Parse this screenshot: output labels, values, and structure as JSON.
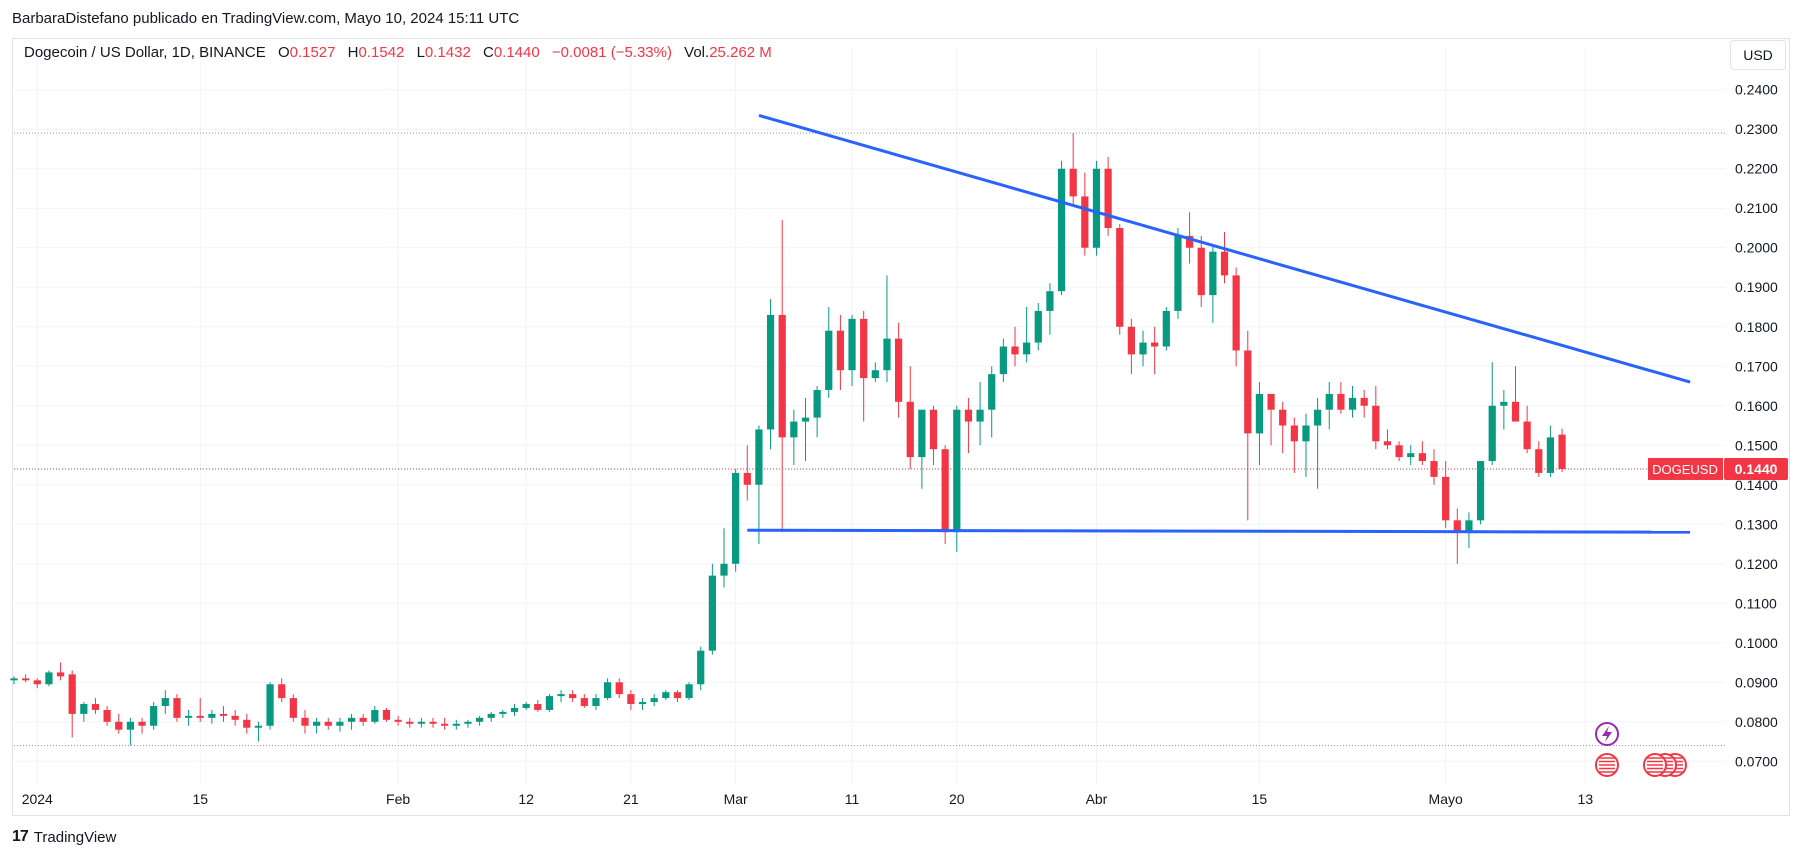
{
  "header": {
    "publisher": "BarbaraDistefano publicado en TradingView.com, Mayo 10, 2024 15:11 UTC"
  },
  "legend": {
    "symbol": "Dogecoin / US Dollar, 1D, BINANCE",
    "o_label": "O",
    "o": "0.1527",
    "h_label": "H",
    "h": "0.1542",
    "l_label": "L",
    "l": "0.1432",
    "c_label": "C",
    "c": "0.1440",
    "change": "−0.0081 (−5.33%)",
    "vol_label": "Vol",
    "vol": "25.262 M"
  },
  "currency_button": "USD",
  "footer": {
    "brand": "TradingView"
  },
  "colors": {
    "up": "#089981",
    "down": "#f23645",
    "trendline": "#2962ff",
    "grid": "#f0f3fa"
  },
  "chart_data": {
    "type": "candlestick",
    "symbol": "DOGEUSD",
    "last_price_label": "0.1440",
    "y_ticks": [
      "0.2400",
      "0.2300",
      "0.2200",
      "0.2100",
      "0.2000",
      "0.1900",
      "0.1800",
      "0.1700",
      "0.1600",
      "0.1500",
      "0.1400",
      "0.1300",
      "0.1200",
      "0.1100",
      "0.1000",
      "0.0900",
      "0.0800",
      "0.0700"
    ],
    "ylim": [
      0.064,
      0.2455
    ],
    "x_ticks": [
      {
        "label": "2024",
        "day": 1
      },
      {
        "label": "15",
        "day": 15
      },
      {
        "label": "Feb",
        "day": 32
      },
      {
        "label": "12",
        "day": 43
      },
      {
        "label": "21",
        "day": 52
      },
      {
        "label": "Mar",
        "day": 61
      },
      {
        "label": "11",
        "day": 71
      },
      {
        "label": "20",
        "day": 80
      },
      {
        "label": "Abr",
        "day": 92
      },
      {
        "label": "15",
        "day": 106
      },
      {
        "label": "Mayo",
        "day": 122
      },
      {
        "label": "13",
        "day": 134
      }
    ],
    "x_start_day": -1,
    "x_end_day": 146,
    "candles": [
      [
        0.0905,
        0.0915,
        0.0895,
        0.091
      ],
      [
        0.091,
        0.092,
        0.09,
        0.0905
      ],
      [
        0.0905,
        0.091,
        0.0885,
        0.0895
      ],
      [
        0.0895,
        0.093,
        0.089,
        0.0925
      ],
      [
        0.0925,
        0.095,
        0.0905,
        0.0915
      ],
      [
        0.092,
        0.093,
        0.076,
        0.082
      ],
      [
        0.082,
        0.085,
        0.08,
        0.0845
      ],
      [
        0.0845,
        0.086,
        0.082,
        0.083
      ],
      [
        0.083,
        0.084,
        0.079,
        0.08
      ],
      [
        0.08,
        0.082,
        0.077,
        0.078
      ],
      [
        0.078,
        0.081,
        0.074,
        0.08
      ],
      [
        0.08,
        0.081,
        0.077,
        0.079
      ],
      [
        0.079,
        0.085,
        0.078,
        0.084
      ],
      [
        0.084,
        0.088,
        0.082,
        0.086
      ],
      [
        0.086,
        0.087,
        0.08,
        0.081
      ],
      [
        0.081,
        0.083,
        0.079,
        0.0815
      ],
      [
        0.0815,
        0.086,
        0.08,
        0.081
      ],
      [
        0.081,
        0.083,
        0.0795,
        0.082
      ],
      [
        0.082,
        0.084,
        0.08,
        0.0815
      ],
      [
        0.0815,
        0.083,
        0.079,
        0.0805
      ],
      [
        0.0805,
        0.082,
        0.077,
        0.0785
      ],
      [
        0.0785,
        0.08,
        0.075,
        0.079
      ],
      [
        0.079,
        0.09,
        0.078,
        0.0895
      ],
      [
        0.0895,
        0.091,
        0.085,
        0.086
      ],
      [
        0.086,
        0.087,
        0.08,
        0.081
      ],
      [
        0.081,
        0.083,
        0.077,
        0.079
      ],
      [
        0.079,
        0.081,
        0.077,
        0.08
      ],
      [
        0.08,
        0.081,
        0.078,
        0.079
      ],
      [
        0.079,
        0.081,
        0.0775,
        0.08
      ],
      [
        0.08,
        0.082,
        0.078,
        0.081
      ],
      [
        0.081,
        0.082,
        0.079,
        0.08
      ],
      [
        0.08,
        0.084,
        0.0795,
        0.083
      ],
      [
        0.083,
        0.0835,
        0.08,
        0.0805
      ],
      [
        0.0805,
        0.0815,
        0.079,
        0.08
      ],
      [
        0.08,
        0.081,
        0.0785,
        0.0795
      ],
      [
        0.0795,
        0.081,
        0.0785,
        0.08
      ],
      [
        0.08,
        0.081,
        0.0785,
        0.0795
      ],
      [
        0.0795,
        0.081,
        0.078,
        0.079
      ],
      [
        0.079,
        0.0805,
        0.078,
        0.0795
      ],
      [
        0.0795,
        0.0805,
        0.0785,
        0.08
      ],
      [
        0.08,
        0.0815,
        0.079,
        0.081
      ],
      [
        0.081,
        0.0825,
        0.08,
        0.082
      ],
      [
        0.082,
        0.083,
        0.081,
        0.0825
      ],
      [
        0.0825,
        0.0845,
        0.0815,
        0.0835
      ],
      [
        0.0835,
        0.085,
        0.083,
        0.0845
      ],
      [
        0.0845,
        0.0855,
        0.0825,
        0.083
      ],
      [
        0.083,
        0.087,
        0.0825,
        0.0865
      ],
      [
        0.0865,
        0.088,
        0.085,
        0.087
      ],
      [
        0.087,
        0.088,
        0.085,
        0.086
      ],
      [
        0.086,
        0.087,
        0.0835,
        0.084
      ],
      [
        0.084,
        0.087,
        0.083,
        0.086
      ],
      [
        0.086,
        0.091,
        0.0855,
        0.09
      ],
      [
        0.09,
        0.091,
        0.086,
        0.087
      ],
      [
        0.087,
        0.088,
        0.083,
        0.0845
      ],
      [
        0.0845,
        0.086,
        0.083,
        0.085
      ],
      [
        0.085,
        0.087,
        0.084,
        0.086
      ],
      [
        0.086,
        0.088,
        0.0855,
        0.0875
      ],
      [
        0.0875,
        0.088,
        0.085,
        0.086
      ],
      [
        0.086,
        0.09,
        0.0855,
        0.0895
      ],
      [
        0.0895,
        0.099,
        0.088,
        0.098
      ],
      [
        0.098,
        0.12,
        0.097,
        0.117
      ],
      [
        0.117,
        0.129,
        0.114,
        0.12
      ],
      [
        0.12,
        0.144,
        0.118,
        0.143
      ],
      [
        0.143,
        0.15,
        0.136,
        0.14
      ],
      [
        0.14,
        0.155,
        0.125,
        0.154
      ],
      [
        0.154,
        0.187,
        0.149,
        0.183
      ],
      [
        0.183,
        0.207,
        0.128,
        0.152
      ],
      [
        0.152,
        0.159,
        0.145,
        0.156
      ],
      [
        0.156,
        0.162,
        0.146,
        0.157
      ],
      [
        0.157,
        0.165,
        0.152,
        0.164
      ],
      [
        0.164,
        0.185,
        0.162,
        0.179
      ],
      [
        0.179,
        0.183,
        0.164,
        0.169
      ],
      [
        0.169,
        0.183,
        0.165,
        0.182
      ],
      [
        0.182,
        0.184,
        0.156,
        0.167
      ],
      [
        0.167,
        0.171,
        0.166,
        0.169
      ],
      [
        0.169,
        0.193,
        0.166,
        0.177
      ],
      [
        0.177,
        0.181,
        0.157,
        0.161
      ],
      [
        0.161,
        0.17,
        0.144,
        0.147
      ],
      [
        0.147,
        0.158,
        0.139,
        0.159
      ],
      [
        0.159,
        0.16,
        0.145,
        0.149
      ],
      [
        0.149,
        0.15,
        0.125,
        0.128
      ],
      [
        0.128,
        0.16,
        0.123,
        0.159
      ],
      [
        0.159,
        0.162,
        0.148,
        0.156
      ],
      [
        0.156,
        0.166,
        0.15,
        0.159
      ],
      [
        0.159,
        0.17,
        0.152,
        0.168
      ],
      [
        0.168,
        0.177,
        0.166,
        0.175
      ],
      [
        0.175,
        0.18,
        0.17,
        0.173
      ],
      [
        0.173,
        0.185,
        0.171,
        0.176
      ],
      [
        0.176,
        0.186,
        0.174,
        0.184
      ],
      [
        0.184,
        0.191,
        0.178,
        0.189
      ],
      [
        0.189,
        0.222,
        0.188,
        0.22
      ],
      [
        0.22,
        0.229,
        0.211,
        0.213
      ],
      [
        0.213,
        0.219,
        0.198,
        0.2
      ],
      [
        0.2,
        0.222,
        0.198,
        0.22
      ],
      [
        0.22,
        0.223,
        0.203,
        0.205
      ],
      [
        0.205,
        0.206,
        0.178,
        0.18
      ],
      [
        0.18,
        0.182,
        0.168,
        0.173
      ],
      [
        0.173,
        0.179,
        0.17,
        0.176
      ],
      [
        0.176,
        0.18,
        0.168,
        0.175
      ],
      [
        0.175,
        0.185,
        0.174,
        0.184
      ],
      [
        0.184,
        0.205,
        0.182,
        0.203
      ],
      [
        0.203,
        0.209,
        0.196,
        0.2
      ],
      [
        0.2,
        0.203,
        0.185,
        0.188
      ],
      [
        0.188,
        0.201,
        0.181,
        0.199
      ],
      [
        0.199,
        0.204,
        0.191,
        0.193
      ],
      [
        0.193,
        0.195,
        0.17,
        0.174
      ],
      [
        0.174,
        0.179,
        0.131,
        0.153
      ],
      [
        0.153,
        0.166,
        0.145,
        0.163
      ],
      [
        0.163,
        0.163,
        0.15,
        0.159
      ],
      [
        0.159,
        0.161,
        0.148,
        0.155
      ],
      [
        0.155,
        0.157,
        0.143,
        0.151
      ],
      [
        0.151,
        0.158,
        0.142,
        0.155
      ],
      [
        0.155,
        0.162,
        0.139,
        0.159
      ],
      [
        0.159,
        0.166,
        0.154,
        0.163
      ],
      [
        0.163,
        0.166,
        0.158,
        0.159
      ],
      [
        0.159,
        0.165,
        0.157,
        0.162
      ],
      [
        0.162,
        0.164,
        0.157,
        0.16
      ],
      [
        0.16,
        0.165,
        0.149,
        0.151
      ],
      [
        0.151,
        0.154,
        0.149,
        0.15
      ],
      [
        0.15,
        0.151,
        0.146,
        0.147
      ],
      [
        0.147,
        0.15,
        0.145,
        0.148
      ],
      [
        0.148,
        0.151,
        0.145,
        0.146
      ],
      [
        0.146,
        0.149,
        0.14,
        0.142
      ],
      [
        0.142,
        0.146,
        0.129,
        0.131
      ],
      [
        0.131,
        0.134,
        0.12,
        0.128
      ],
      [
        0.128,
        0.133,
        0.124,
        0.131
      ],
      [
        0.131,
        0.146,
        0.13,
        0.146
      ],
      [
        0.146,
        0.171,
        0.145,
        0.16
      ],
      [
        0.16,
        0.164,
        0.154,
        0.161
      ],
      [
        0.161,
        0.17,
        0.156,
        0.156
      ],
      [
        0.156,
        0.16,
        0.148,
        0.149
      ],
      [
        0.149,
        0.151,
        0.142,
        0.143
      ],
      [
        0.143,
        0.155,
        0.142,
        0.152
      ],
      [
        0.1527,
        0.1542,
        0.1432,
        0.144
      ]
    ],
    "candle_start_day": -1,
    "trendlines": [
      {
        "name": "resistance",
        "x1_day": 63,
        "y1": 0.2335,
        "x2_day": 143,
        "y2": 0.166
      },
      {
        "name": "support",
        "x1_day": 62,
        "y1": 0.1285,
        "x2_day": 143,
        "y2": 0.128
      }
    ],
    "dotted_levels": [
      0.229,
      0.144,
      0.074
    ],
    "event_icons": [
      "lightning-icon",
      "us-flag-icon",
      "us-flag-icon",
      "us-flag-icon",
      "us-flag-icon"
    ]
  }
}
